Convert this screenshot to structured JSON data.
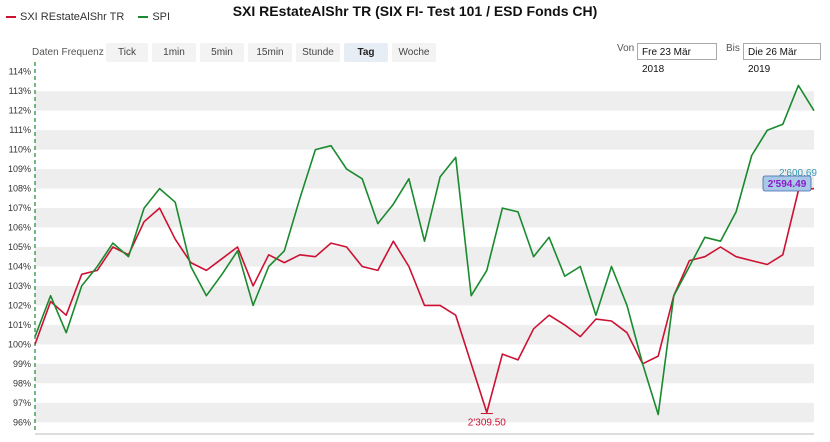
{
  "header": {
    "title": "SXI REstateAlShr TR (SIX FI- Test 101 / ESD Fonds CH)"
  },
  "legend": [
    {
      "label": "SXI REstateAlShr TR",
      "color": "#cc1133"
    },
    {
      "label": "SPI",
      "color": "#1a8a2e"
    }
  ],
  "toolbar": {
    "freq_label": "Daten Frequenz",
    "tabs": [
      "Tick",
      "1min",
      "5min",
      "15min",
      "Stunde",
      "Tag",
      "Woche"
    ],
    "active_tab": "Tag",
    "from_label": "Von",
    "from_value": "Fre 23 Mär 2018",
    "to_label": "Bis",
    "to_value": "Die 26 Mär 2019"
  },
  "chart_data": {
    "type": "line",
    "ylim": [
      95.5,
      114.5
    ],
    "ytick_labels": [
      "96%",
      "97%",
      "98%",
      "99%",
      "100%",
      "101%",
      "102%",
      "103%",
      "104%",
      "105%",
      "106%",
      "107%",
      "108%",
      "109%",
      "110%",
      "111%",
      "112%",
      "113%",
      "114%"
    ],
    "ytick_values": [
      96,
      97,
      98,
      99,
      100,
      101,
      102,
      103,
      104,
      105,
      106,
      107,
      108,
      109,
      110,
      111,
      112,
      113,
      114
    ],
    "grid": true,
    "legend_position": "top-left",
    "x": [
      0,
      2,
      4,
      6,
      8,
      10,
      12,
      14,
      16,
      18,
      20,
      22,
      24,
      26,
      28,
      30,
      32,
      34,
      36,
      38,
      40,
      42,
      44,
      46,
      48,
      50,
      52,
      54,
      56,
      58,
      60,
      62,
      64,
      66,
      68,
      70,
      72,
      74,
      76,
      78,
      80,
      82,
      84,
      86,
      88,
      90,
      92,
      94,
      96,
      98,
      100
    ],
    "series": [
      {
        "name": "SXI REstateAlShr TR",
        "color": "#cc1133",
        "values": [
          100.0,
          102.2,
          101.5,
          103.6,
          103.8,
          105.0,
          104.6,
          106.3,
          107.0,
          105.4,
          104.2,
          103.8,
          104.4,
          105.0,
          103.0,
          104.6,
          104.2,
          104.6,
          104.5,
          105.2,
          105.0,
          104.0,
          103.8,
          105.3,
          104.0,
          102.0,
          102.0,
          101.5,
          99.0,
          96.5,
          99.5,
          99.2,
          100.8,
          101.5,
          101.0,
          100.4,
          101.3,
          101.2,
          100.6,
          99.0,
          99.4,
          102.5,
          104.3,
          104.5,
          105.0,
          104.5,
          104.3,
          104.1,
          104.6,
          107.9,
          108.0
        ],
        "end_label": "2'594.49",
        "min_label": "2'309.50"
      },
      {
        "name": "SPI",
        "color": "#1a8a2e",
        "values": [
          100.4,
          102.5,
          100.6,
          103.0,
          104.0,
          105.2,
          104.5,
          107.0,
          108.0,
          107.3,
          104.0,
          102.5,
          103.6,
          104.8,
          102.0,
          104.0,
          104.8,
          107.5,
          110.0,
          110.2,
          109.0,
          108.5,
          106.2,
          107.2,
          108.5,
          105.3,
          108.6,
          109.6,
          102.5,
          103.8,
          107.0,
          106.8,
          104.5,
          105.5,
          103.5,
          104.0,
          101.5,
          104.0,
          102.0,
          99.0,
          96.4,
          102.5,
          104.0,
          105.5,
          105.3,
          106.8,
          109.7,
          111.0,
          111.3,
          113.3,
          112.0
        ],
        "end_label": "2'600.69"
      }
    ]
  }
}
